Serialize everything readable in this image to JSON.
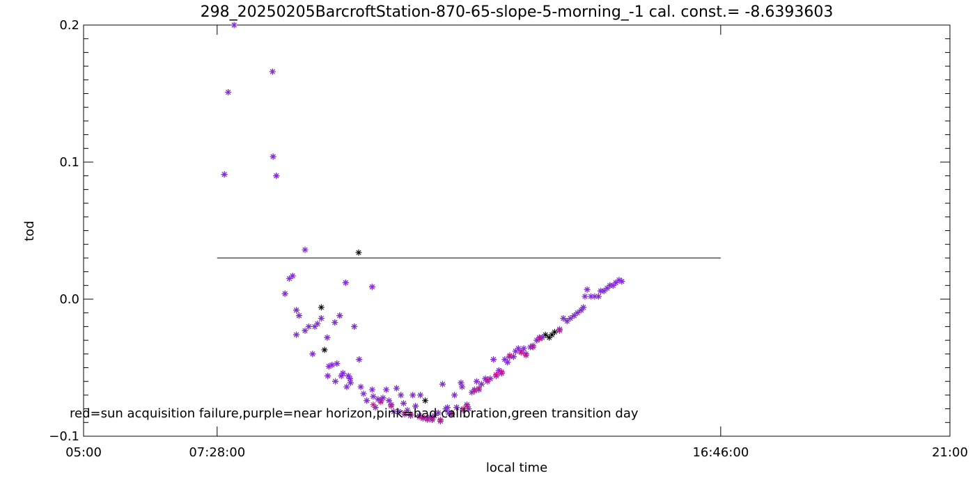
{
  "chart_data": {
    "type": "scatter",
    "title": "298_20250205BarcroftStation-870-65-slope-5-morning_-1 cal. const.= -8.6393603",
    "xlabel": "local time",
    "ylabel": "tod",
    "xlim": [
      5.0,
      21.0
    ],
    "ylim": [
      -0.1,
      0.2
    ],
    "x_ticks": [
      {
        "value": 5.0,
        "label": "05:00"
      },
      {
        "value": 7.4667,
        "label": "07:28:00"
      },
      {
        "value": 16.7667,
        "label": "16:46:00"
      },
      {
        "value": 21.0,
        "label": "21:00"
      }
    ],
    "y_ticks": [
      {
        "value": -0.1,
        "label": "−0.1"
      },
      {
        "value": 0.0,
        "label": "0.0"
      },
      {
        "value": 0.1,
        "label": "0.1"
      },
      {
        "value": 0.2,
        "label": "0.2"
      }
    ],
    "annotation": "red=sun acquisition failure,purple=near horizon,pink=bad calibration,green transition day",
    "reference_line": {
      "x_start": 7.4667,
      "x_end": 16.7667,
      "y": 0.03
    },
    "colors": {
      "axis": "#000000",
      "black": "#000000",
      "purple": "#8a2be2",
      "pink": "#c71585"
    },
    "series": [
      {
        "marker": "asterisk",
        "color": "black",
        "points": [
          [
            7.6,
            0.091
          ],
          [
            7.67,
            0.151
          ],
          [
            7.78,
            0.2
          ],
          [
            8.49,
            0.166
          ],
          [
            8.5,
            0.104
          ],
          [
            8.56,
            0.09
          ],
          [
            8.72,
            0.004
          ],
          [
            8.8,
            0.015
          ],
          [
            8.86,
            0.017
          ],
          [
            8.93,
            -0.026
          ],
          [
            8.93,
            -0.008
          ],
          [
            8.98,
            -0.012
          ],
          [
            9.09,
            0.036
          ],
          [
            9.09,
            -0.023
          ],
          [
            9.16,
            -0.02
          ],
          [
            9.23,
            -0.04
          ],
          [
            9.27,
            -0.02
          ],
          [
            9.32,
            -0.018
          ],
          [
            9.39,
            -0.014
          ],
          [
            9.39,
            -0.006
          ],
          [
            9.45,
            -0.037
          ],
          [
            9.5,
            -0.028
          ],
          [
            9.51,
            -0.056
          ],
          [
            9.53,
            -0.049
          ],
          [
            9.59,
            -0.048
          ],
          [
            9.64,
            -0.017
          ],
          [
            9.65,
            -0.06
          ],
          [
            9.68,
            -0.047
          ],
          [
            9.73,
            -0.012
          ],
          [
            9.76,
            -0.056
          ],
          [
            9.79,
            -0.054
          ],
          [
            9.84,
            0.012
          ],
          [
            9.86,
            -0.064
          ],
          [
            9.89,
            -0.056
          ],
          [
            9.92,
            -0.058
          ],
          [
            9.93,
            -0.061
          ],
          [
            10.0,
            -0.02
          ],
          [
            10.08,
            0.034
          ],
          [
            10.09,
            -0.044
          ],
          [
            10.12,
            -0.064
          ],
          [
            10.17,
            -0.069
          ],
          [
            10.23,
            -0.074
          ],
          [
            10.33,
            0.009
          ],
          [
            10.33,
            -0.066
          ],
          [
            10.35,
            -0.071
          ],
          [
            10.39,
            -0.079
          ],
          [
            10.44,
            -0.073
          ],
          [
            10.49,
            -0.074
          ],
          [
            10.53,
            -0.072
          ],
          [
            10.59,
            -0.066
          ],
          [
            10.64,
            -0.074
          ],
          [
            10.68,
            -0.077
          ],
          [
            10.73,
            -0.082
          ],
          [
            10.78,
            -0.065
          ],
          [
            10.82,
            -0.082
          ],
          [
            10.86,
            -0.07
          ],
          [
            10.91,
            -0.076
          ],
          [
            10.93,
            -0.084
          ],
          [
            10.98,
            -0.081
          ],
          [
            11.04,
            -0.085
          ],
          [
            11.08,
            -0.07
          ],
          [
            11.13,
            -0.078
          ],
          [
            11.2,
            -0.085
          ],
          [
            11.22,
            -0.07
          ],
          [
            11.27,
            -0.087
          ],
          [
            11.31,
            -0.074
          ],
          [
            11.35,
            -0.087
          ],
          [
            11.4,
            -0.086
          ],
          [
            11.44,
            -0.088
          ],
          [
            11.48,
            -0.085
          ],
          [
            11.55,
            -0.083
          ],
          [
            11.59,
            -0.089
          ],
          [
            11.63,
            -0.062
          ],
          [
            11.69,
            -0.08
          ],
          [
            11.72,
            -0.079
          ],
          [
            11.74,
            -0.083
          ],
          [
            11.8,
            -0.084
          ],
          [
            11.85,
            -0.07
          ],
          [
            11.89,
            -0.079
          ],
          [
            11.97,
            -0.061
          ],
          [
            11.99,
            -0.064
          ],
          [
            12.01,
            -0.081
          ],
          [
            12.08,
            -0.077
          ],
          [
            12.11,
            -0.08
          ],
          [
            12.17,
            -0.068
          ],
          [
            12.22,
            -0.066
          ],
          [
            12.26,
            -0.06
          ],
          [
            12.3,
            -0.066
          ],
          [
            12.35,
            -0.062
          ],
          [
            12.42,
            -0.058
          ],
          [
            12.46,
            -0.06
          ],
          [
            12.51,
            -0.058
          ],
          [
            12.57,
            -0.044
          ],
          [
            12.62,
            -0.056
          ],
          [
            12.67,
            -0.052
          ],
          [
            12.72,
            -0.054
          ],
          [
            12.78,
            -0.044
          ],
          [
            12.83,
            -0.046
          ],
          [
            12.87,
            -0.042
          ],
          [
            12.94,
            -0.042
          ],
          [
            12.98,
            -0.038
          ],
          [
            13.03,
            -0.036
          ],
          [
            13.08,
            -0.038
          ],
          [
            13.13,
            -0.036
          ],
          [
            13.17,
            -0.04
          ],
          [
            13.25,
            -0.035
          ],
          [
            13.3,
            -0.034
          ],
          [
            13.37,
            -0.03
          ],
          [
            13.42,
            -0.028
          ],
          [
            13.47,
            -0.028
          ],
          [
            13.53,
            -0.026
          ],
          [
            13.6,
            -0.028
          ],
          [
            13.65,
            -0.026
          ],
          [
            13.7,
            -0.024
          ],
          [
            13.79,
            -0.022
          ],
          [
            13.86,
            -0.014
          ],
          [
            13.93,
            -0.016
          ],
          [
            13.99,
            -0.014
          ],
          [
            14.06,
            -0.012
          ],
          [
            14.12,
            -0.01
          ],
          [
            14.19,
            -0.008
          ],
          [
            14.23,
            -0.006
          ],
          [
            14.26,
            0.002
          ],
          [
            14.3,
            0.007
          ],
          [
            14.37,
            0.002
          ],
          [
            14.44,
            0.002
          ],
          [
            14.51,
            0.002
          ],
          [
            14.55,
            0.006
          ],
          [
            14.61,
            0.006
          ],
          [
            14.67,
            0.008
          ],
          [
            14.72,
            0.01
          ],
          [
            14.78,
            0.01
          ],
          [
            14.83,
            0.012
          ],
          [
            14.89,
            0.014
          ],
          [
            14.94,
            0.013
          ]
        ]
      },
      {
        "marker": "asterisk",
        "color": "purple",
        "points": [
          [
            7.6,
            0.091
          ],
          [
            7.67,
            0.151
          ],
          [
            7.78,
            0.2
          ],
          [
            8.49,
            0.166
          ],
          [
            8.5,
            0.104
          ],
          [
            8.56,
            0.09
          ],
          [
            8.72,
            0.004
          ],
          [
            8.8,
            0.015
          ],
          [
            8.86,
            0.017
          ],
          [
            8.93,
            -0.026
          ],
          [
            8.93,
            -0.008
          ],
          [
            8.98,
            -0.012
          ],
          [
            9.09,
            0.036
          ],
          [
            9.09,
            -0.023
          ],
          [
            9.16,
            -0.02
          ],
          [
            9.23,
            -0.04
          ],
          [
            9.27,
            -0.02
          ],
          [
            9.32,
            -0.018
          ],
          [
            9.39,
            -0.014
          ],
          [
            9.5,
            -0.028
          ],
          [
            9.51,
            -0.056
          ],
          [
            9.53,
            -0.049
          ],
          [
            9.59,
            -0.048
          ],
          [
            9.64,
            -0.017
          ],
          [
            9.65,
            -0.06
          ],
          [
            9.68,
            -0.047
          ],
          [
            9.73,
            -0.012
          ],
          [
            9.76,
            -0.056
          ],
          [
            9.79,
            -0.054
          ],
          [
            9.84,
            0.012
          ],
          [
            9.86,
            -0.064
          ],
          [
            9.89,
            -0.056
          ],
          [
            9.92,
            -0.058
          ],
          [
            9.93,
            -0.061
          ],
          [
            10.0,
            -0.02
          ],
          [
            10.09,
            -0.044
          ],
          [
            10.12,
            -0.064
          ],
          [
            10.17,
            -0.069
          ],
          [
            10.23,
            -0.074
          ],
          [
            10.33,
            0.009
          ],
          [
            10.33,
            -0.066
          ],
          [
            10.35,
            -0.071
          ],
          [
            10.39,
            -0.079
          ],
          [
            10.44,
            -0.073
          ],
          [
            10.49,
            -0.074
          ],
          [
            10.53,
            -0.072
          ],
          [
            10.59,
            -0.066
          ],
          [
            10.64,
            -0.074
          ],
          [
            10.68,
            -0.077
          ],
          [
            10.73,
            -0.082
          ],
          [
            10.78,
            -0.065
          ],
          [
            10.82,
            -0.082
          ],
          [
            10.86,
            -0.07
          ],
          [
            10.91,
            -0.076
          ],
          [
            10.93,
            -0.084
          ],
          [
            10.98,
            -0.081
          ],
          [
            11.04,
            -0.085
          ],
          [
            11.08,
            -0.07
          ],
          [
            11.13,
            -0.078
          ],
          [
            11.2,
            -0.085
          ],
          [
            11.22,
            -0.07
          ],
          [
            11.27,
            -0.087
          ],
          [
            11.35,
            -0.087
          ],
          [
            11.4,
            -0.086
          ],
          [
            11.44,
            -0.088
          ],
          [
            11.48,
            -0.085
          ],
          [
            11.55,
            -0.083
          ],
          [
            11.59,
            -0.089
          ],
          [
            11.63,
            -0.062
          ],
          [
            11.69,
            -0.08
          ],
          [
            11.72,
            -0.079
          ],
          [
            11.74,
            -0.083
          ],
          [
            11.8,
            -0.084
          ],
          [
            11.85,
            -0.07
          ],
          [
            11.89,
            -0.079
          ],
          [
            11.97,
            -0.061
          ],
          [
            11.99,
            -0.064
          ],
          [
            12.01,
            -0.081
          ],
          [
            12.08,
            -0.077
          ],
          [
            12.11,
            -0.08
          ],
          [
            12.17,
            -0.068
          ],
          [
            12.22,
            -0.066
          ],
          [
            12.26,
            -0.06
          ],
          [
            12.3,
            -0.066
          ],
          [
            12.35,
            -0.062
          ],
          [
            12.42,
            -0.058
          ],
          [
            12.46,
            -0.06
          ],
          [
            12.51,
            -0.058
          ],
          [
            12.57,
            -0.044
          ],
          [
            12.62,
            -0.056
          ],
          [
            12.67,
            -0.052
          ],
          [
            12.72,
            -0.054
          ],
          [
            12.78,
            -0.044
          ],
          [
            12.83,
            -0.046
          ],
          [
            12.87,
            -0.042
          ],
          [
            12.94,
            -0.042
          ],
          [
            12.98,
            -0.038
          ],
          [
            13.03,
            -0.036
          ],
          [
            13.08,
            -0.038
          ],
          [
            13.13,
            -0.036
          ],
          [
            13.17,
            -0.04
          ],
          [
            13.25,
            -0.035
          ],
          [
            13.3,
            -0.034
          ],
          [
            13.37,
            -0.03
          ],
          [
            13.42,
            -0.028
          ],
          [
            13.47,
            -0.028
          ],
          [
            13.79,
            -0.022
          ],
          [
            13.86,
            -0.014
          ],
          [
            13.93,
            -0.016
          ],
          [
            13.99,
            -0.014
          ],
          [
            14.06,
            -0.012
          ],
          [
            14.12,
            -0.01
          ],
          [
            14.19,
            -0.008
          ],
          [
            14.23,
            -0.006
          ],
          [
            14.26,
            0.002
          ],
          [
            14.3,
            0.007
          ],
          [
            14.37,
            0.002
          ],
          [
            14.44,
            0.002
          ],
          [
            14.51,
            0.002
          ],
          [
            14.55,
            0.006
          ],
          [
            14.61,
            0.006
          ],
          [
            14.67,
            0.008
          ],
          [
            14.72,
            0.01
          ],
          [
            14.78,
            0.01
          ],
          [
            14.83,
            0.012
          ],
          [
            14.89,
            0.014
          ],
          [
            14.94,
            0.013
          ]
        ]
      },
      {
        "marker": "asterisk",
        "color": "pink",
        "points": [
          [
            10.35,
            -0.077
          ],
          [
            10.49,
            -0.075
          ],
          [
            10.68,
            -0.078
          ],
          [
            10.93,
            -0.083
          ],
          [
            11.04,
            -0.084
          ],
          [
            11.2,
            -0.086
          ],
          [
            11.27,
            -0.086
          ],
          [
            11.35,
            -0.088
          ],
          [
            11.44,
            -0.087
          ],
          [
            11.59,
            -0.088
          ],
          [
            11.8,
            -0.083
          ],
          [
            12.01,
            -0.08
          ],
          [
            12.08,
            -0.078
          ],
          [
            12.22,
            -0.067
          ],
          [
            12.3,
            -0.065
          ],
          [
            12.46,
            -0.059
          ],
          [
            12.62,
            -0.055
          ],
          [
            12.72,
            -0.053
          ],
          [
            12.87,
            -0.041
          ],
          [
            13.08,
            -0.039
          ],
          [
            13.17,
            -0.041
          ],
          [
            13.3,
            -0.035
          ],
          [
            13.42,
            -0.029
          ],
          [
            13.79,
            -0.023
          ]
        ]
      }
    ]
  }
}
